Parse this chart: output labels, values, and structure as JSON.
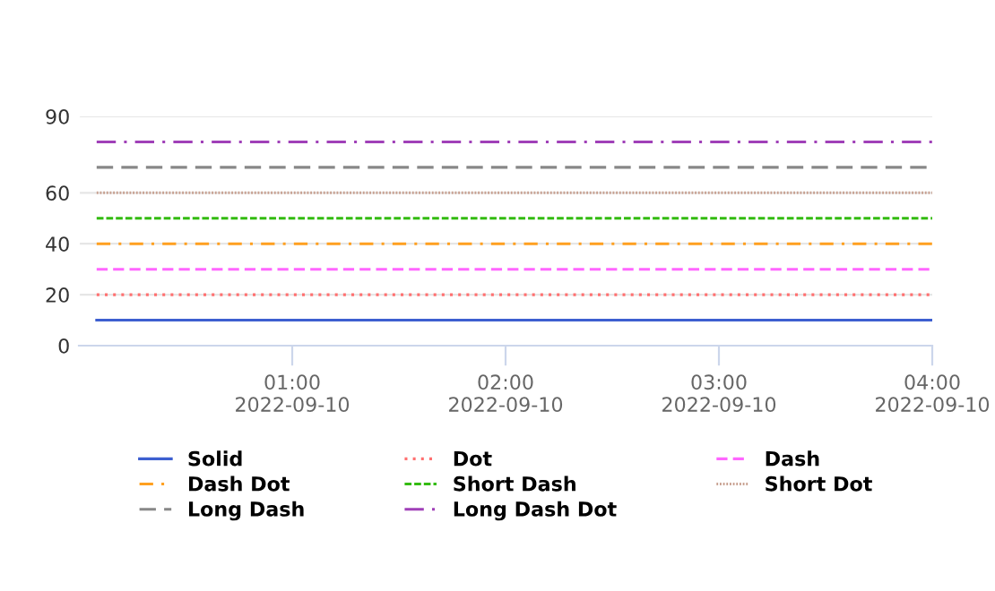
{
  "chart_data": {
    "type": "line",
    "x": [
      "2022-09-10T00:05",
      "2022-09-10T04:00"
    ],
    "xlim": [
      "2022-09-10T00:00",
      "2022-09-10T04:00"
    ],
    "xticks": [
      {
        "value": "2022-09-10T01:00",
        "label": "01:00\n2022-09-10"
      },
      {
        "value": "2022-09-10T02:00",
        "label": "02:00\n2022-09-10"
      },
      {
        "value": "2022-09-10T03:00",
        "label": "03:00\n2022-09-10"
      },
      {
        "value": "2022-09-10T04:00",
        "label": "04:00\n2022-09-10"
      }
    ],
    "ylim": [
      0,
      90
    ],
    "yticks": [
      0,
      20,
      40,
      60,
      90
    ],
    "grid": "y",
    "legend": "bottom",
    "marker": "none",
    "series": [
      {
        "name": "Solid",
        "color": "#3d5fd0",
        "line_style": "solid",
        "values": [
          10,
          10
        ]
      },
      {
        "name": "Dot",
        "color": "#ff7070",
        "line_style": "dotted",
        "values": [
          20,
          20
        ]
      },
      {
        "name": "Dash",
        "color": "#ff66ff",
        "line_style": "dashed",
        "values": [
          30,
          30
        ]
      },
      {
        "name": "Dash Dot",
        "color": "#ffa020",
        "line_style": "dashdot",
        "values": [
          40,
          40
        ]
      },
      {
        "name": "Short Dash",
        "color": "#33bb11",
        "line_style": "shortdash",
        "values": [
          50,
          50
        ]
      },
      {
        "name": "Short Dot",
        "color": "#c8a090",
        "line_style": "shortdot",
        "values": [
          60,
          60
        ]
      },
      {
        "name": "Long Dash",
        "color": "#888888",
        "line_style": "longdash",
        "values": [
          70,
          70
        ]
      },
      {
        "name": "Long Dash Dot",
        "color": "#a040b8",
        "line_style": "longdashdot",
        "values": [
          80,
          80
        ]
      }
    ]
  }
}
